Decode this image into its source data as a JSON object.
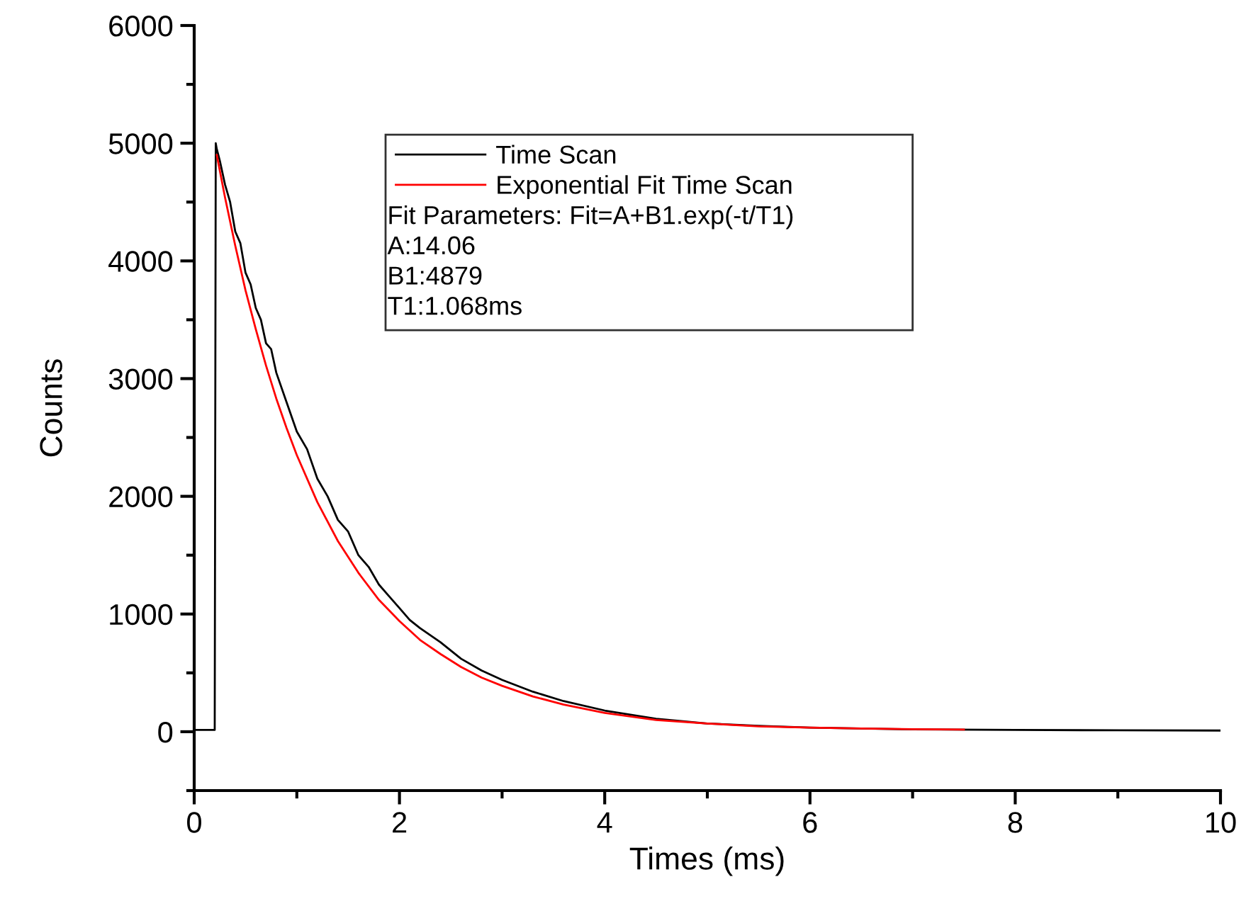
{
  "chart_data": {
    "type": "line",
    "xlabel": "Times (ms)",
    "ylabel": "Counts",
    "xlim": [
      0,
      10
    ],
    "xticks": [
      0,
      2,
      4,
      6,
      8,
      10
    ],
    "ylim": [
      -500,
      6000
    ],
    "yticks": [
      0,
      1000,
      2000,
      3000,
      4000,
      5000,
      6000
    ],
    "grid": false,
    "legend": "top left",
    "marker": "none",
    "line_style": "solid",
    "annotations": [
      "Fit Parameters: Fit=A+B1.exp(-t/T1)",
      "A:14.06",
      "B1:4879",
      "T1:1.068ms"
    ],
    "series": [
      {
        "name": "Time Scan",
        "color": "#000000",
        "x": [
          0,
          0.1,
          0.2,
          0.21,
          0.22,
          0.25,
          0.3,
          0.35,
          0.4,
          0.45,
          0.5,
          0.55,
          0.6,
          0.65,
          0.7,
          0.75,
          0.8,
          0.9,
          1.0,
          1.1,
          1.2,
          1.3,
          1.4,
          1.5,
          1.6,
          1.7,
          1.8,
          1.9,
          2.0,
          2.1,
          2.2,
          2.4,
          2.6,
          2.8,
          3.0,
          3.3,
          3.6,
          4.0,
          4.5,
          5.0,
          5.5,
          6.0,
          7.0,
          8.0,
          9.0,
          10.0
        ],
        "values": [
          15,
          15,
          15,
          5000,
          4950,
          4850,
          4650,
          4500,
          4250,
          4150,
          3900,
          3800,
          3600,
          3500,
          3300,
          3250,
          3050,
          2800,
          2550,
          2400,
          2150,
          2000,
          1800,
          1700,
          1500,
          1400,
          1250,
          1150,
          1050,
          950,
          880,
          760,
          620,
          520,
          440,
          340,
          260,
          180,
          110,
          70,
          50,
          35,
          20,
          15,
          12,
          10
        ]
      },
      {
        "name": "Exponential Fit Time Scan",
        "color": "#ff0000",
        "x": [
          0.22,
          0.3,
          0.4,
          0.5,
          0.6,
          0.7,
          0.8,
          0.9,
          1.0,
          1.2,
          1.4,
          1.6,
          1.8,
          2.0,
          2.2,
          2.4,
          2.6,
          2.8,
          3.0,
          3.3,
          3.6,
          4.0,
          4.5,
          5.0,
          5.5,
          6.0,
          6.5,
          7.0,
          7.5
        ],
        "values": [
          4900,
          4540,
          4130,
          3750,
          3420,
          3110,
          2830,
          2580,
          2350,
          1950,
          1620,
          1350,
          1120,
          940,
          780,
          660,
          550,
          460,
          390,
          300,
          230,
          160,
          100,
          70,
          45,
          35,
          27,
          22,
          19
        ]
      }
    ]
  }
}
